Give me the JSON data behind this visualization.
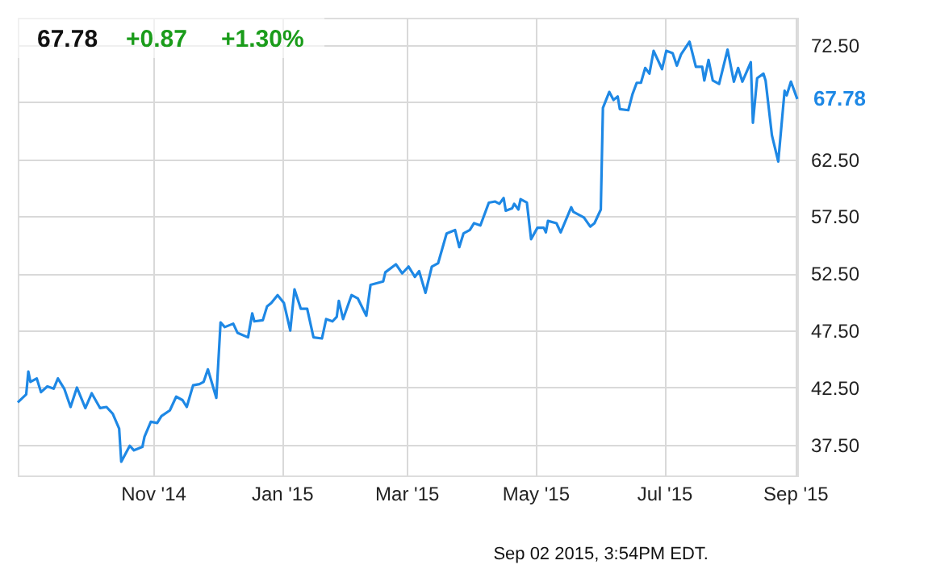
{
  "chart_data": {
    "type": "line",
    "title": "67.78",
    "annotations": [
      "+0.87",
      "+1.30%",
      "Sep 02 2015, 3:54PM EDT.",
      {
        "text": "67.78",
        "x": "2015-09-02",
        "y": 67.78
      }
    ],
    "x": [
      "2014-08-29",
      "2014-09-02",
      "2014-09-03",
      "2014-09-04",
      "2014-09-07",
      "2014-09-09",
      "2014-09-12",
      "2014-09-15",
      "2014-09-17",
      "2014-09-20",
      "2014-09-23",
      "2014-09-26",
      "2014-09-30",
      "2014-10-03",
      "2014-10-07",
      "2014-10-10",
      "2014-10-13",
      "2014-10-16",
      "2014-10-17",
      "2014-10-21",
      "2014-10-23",
      "2014-10-27",
      "2014-10-28",
      "2014-10-31",
      "2014-11-03",
      "2014-11-05",
      "2014-11-09",
      "2014-11-12",
      "2014-11-15",
      "2014-11-17",
      "2014-11-20",
      "2014-11-23",
      "2014-11-25",
      "2014-11-27",
      "2014-12-01",
      "2014-12-03",
      "2014-12-05",
      "2014-12-09",
      "2014-12-11",
      "2014-12-16",
      "2014-12-18",
      "2014-12-19",
      "2014-12-23",
      "2014-12-25",
      "2014-12-27",
      "2014-12-30",
      "2015-01-02",
      "2015-01-05",
      "2015-01-07",
      "2015-01-10",
      "2015-01-13",
      "2015-01-16",
      "2015-01-20",
      "2015-01-22",
      "2015-01-25",
      "2015-01-27",
      "2015-01-28",
      "2015-01-30",
      "2015-02-03",
      "2015-02-06",
      "2015-02-10",
      "2015-02-12",
      "2015-02-18",
      "2015-02-19",
      "2015-02-24",
      "2015-02-27",
      "2015-03-02",
      "2015-03-05",
      "2015-03-07",
      "2015-03-10",
      "2015-03-13",
      "2015-03-16",
      "2015-03-20",
      "2015-03-24",
      "2015-03-26",
      "2015-03-28",
      "2015-03-31",
      "2015-04-02",
      "2015-04-05",
      "2015-04-09",
      "2015-04-12",
      "2015-04-14",
      "2015-04-16",
      "2015-04-17",
      "2015-04-20",
      "2015-04-21",
      "2015-04-23",
      "2015-04-24",
      "2015-04-27",
      "2015-04-29",
      "2015-05-02",
      "2015-05-05",
      "2015-05-06",
      "2015-05-07",
      "2015-05-11",
      "2015-05-13",
      "2015-05-18",
      "2015-05-19",
      "2015-05-24",
      "2015-05-27",
      "2015-05-29",
      "2015-06-01",
      "2015-06-02",
      "2015-06-05",
      "2015-06-07",
      "2015-06-09",
      "2015-06-10",
      "2015-06-14",
      "2015-06-16",
      "2015-06-18",
      "2015-06-20",
      "2015-06-22",
      "2015-06-24",
      "2015-06-26",
      "2015-06-30",
      "2015-07-02",
      "2015-07-05",
      "2015-07-07",
      "2015-07-09",
      "2015-07-13",
      "2015-07-16",
      "2015-07-19",
      "2015-07-20",
      "2015-07-22",
      "2015-07-24",
      "2015-07-27",
      "2015-07-31",
      "2015-08-03",
      "2015-08-05",
      "2015-08-07",
      "2015-08-11",
      "2015-08-12",
      "2015-08-14",
      "2015-08-17",
      "2015-08-18",
      "2015-08-21",
      "2015-08-24",
      "2015-08-27",
      "2015-08-28",
      "2015-08-30",
      "2015-09-02"
    ],
    "series": [
      {
        "color": "#1e88e5",
        "values": [
          41.2,
          41.9,
          43.9,
          43.0,
          43.3,
          42.1,
          42.6,
          42.4,
          43.3,
          42.4,
          40.8,
          42.5,
          40.7,
          42.0,
          40.7,
          40.8,
          40.2,
          38.9,
          36.0,
          37.4,
          37.0,
          37.3,
          38.2,
          39.5,
          39.4,
          40.0,
          40.5,
          41.7,
          41.4,
          40.8,
          42.7,
          42.8,
          43.0,
          44.1,
          41.6,
          48.2,
          47.8,
          48.1,
          47.3,
          46.9,
          49.0,
          48.3,
          48.4,
          49.6,
          49.9,
          50.6,
          49.9,
          47.5,
          51.1,
          49.4,
          49.4,
          46.9,
          46.8,
          48.5,
          48.3,
          48.7,
          50.1,
          48.5,
          50.6,
          50.3,
          48.8,
          51.5,
          51.8,
          52.6,
          53.3,
          52.5,
          53.1,
          52.2,
          52.7,
          50.8,
          53.1,
          53.4,
          56.0,
          56.3,
          54.8,
          56.0,
          56.3,
          56.9,
          56.7,
          58.7,
          58.8,
          58.6,
          59.1,
          58.0,
          58.2,
          58.6,
          58.1,
          59.0,
          58.7,
          55.5,
          56.5,
          56.5,
          56.1,
          57.1,
          56.9,
          56.1,
          58.3,
          57.9,
          57.4,
          56.6,
          56.9,
          58.1,
          67.0,
          68.4,
          67.7,
          68.0,
          66.9,
          66.8,
          68.2,
          69.2,
          69.2,
          70.5,
          70.0,
          72.0,
          70.4,
          72.0,
          71.8,
          70.7,
          71.7,
          72.8,
          70.6,
          70.6,
          69.4,
          71.2,
          69.4,
          69.1,
          72.1,
          69.3,
          70.5,
          69.3,
          71.0,
          65.7,
          69.6,
          70.0,
          69.4,
          64.6,
          62.3,
          68.5,
          68.1,
          69.3,
          67.78
        ]
      }
    ],
    "xlim": [
      "2014-08-29",
      "2015-09-02"
    ],
    "xticks": [
      {
        "value": "2014-11-01",
        "label": "Nov '14"
      },
      {
        "value": "2015-01-01",
        "label": "Jan '15"
      },
      {
        "value": "2015-03-01",
        "label": "Mar '15"
      },
      {
        "value": "2015-05-01",
        "label": "May '15"
      },
      {
        "value": "2015-07-01",
        "label": "Jul '15"
      },
      {
        "value": "2015-09-01",
        "label": "Sep '15"
      }
    ],
    "ylim": [
      34.8,
      74.9
    ],
    "yticks": [
      {
        "value": 37.5,
        "label": "37.50"
      },
      {
        "value": 42.5,
        "label": "42.50"
      },
      {
        "value": 47.5,
        "label": "47.50"
      },
      {
        "value": 52.5,
        "label": "52.50"
      },
      {
        "value": 57.5,
        "label": "57.50"
      },
      {
        "value": 62.5,
        "label": "62.50"
      },
      {
        "value": 67.5,
        "label": null
      },
      {
        "value": 72.5,
        "label": "72.50"
      }
    ],
    "grid": true,
    "marker": "none",
    "line_style": "solid"
  }
}
